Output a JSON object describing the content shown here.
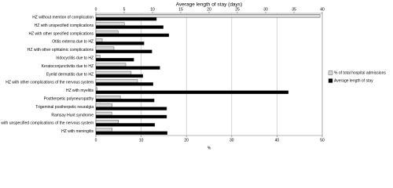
{
  "chart_data": {
    "type": "hbar",
    "title": "Average length of stay (days)",
    "xlabel": "%",
    "categories": [
      "HZ without mention of complication",
      "HZ with unspecified complications",
      "HZ with other specified complications",
      "Otitis externa due to HZ",
      "HZ with other ophtalmic complications",
      "Iridocyclitis due to HZ",
      "Keratoconjunctivitis due to HZ",
      "Eyelid dermatitis due to HZ",
      "HZ with other complications of the nervous system",
      "HZ with myelitis",
      "Postherpetic polyneuropathy",
      "Trigeminal postherpetic neuralgia",
      "Ramsay Hunt syndrome",
      "HZ with unspecified complications of the nervous system",
      "HZ with meningitis"
    ],
    "series": [
      {
        "name": "% of total hospital admissions",
        "color": "#d9d9d9",
        "axis": "x",
        "values": [
          49.5,
          6.3,
          4.9,
          1.4,
          4.0,
          0.9,
          6.6,
          7.8,
          9.2,
          0.3,
          5.4,
          3.6,
          3.5,
          5.0,
          3.6
        ]
      },
      {
        "name": "Average length of stay",
        "color": "#000000",
        "axis": "x2",
        "values": [
          10.7,
          11.9,
          12.9,
          8.5,
          9.9,
          6.7,
          11.3,
          8.3,
          10.1,
          34,
          10.3,
          12.5,
          12.5,
          10.4,
          12.6
        ]
      }
    ],
    "xlim": [
      0,
      50
    ],
    "xticks": [
      0,
      10,
      20,
      30,
      40,
      50
    ],
    "x2lim": [
      0,
      40
    ],
    "x2ticks": [
      0,
      5,
      10,
      15,
      20,
      25,
      30,
      35,
      40
    ],
    "grid": true,
    "legend": "right"
  }
}
